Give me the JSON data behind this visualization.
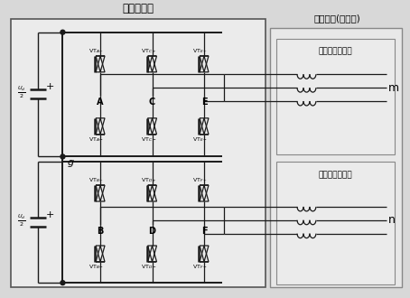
{
  "title_inverter": "六相逆变器",
  "title_motor": "六相电机(定子侧)",
  "label_winding1": "定子第一套绕组",
  "label_winding2": "定子第二套绕组",
  "label_g": "g",
  "label_m": "m",
  "label_n": "n",
  "phases1": [
    "A",
    "C",
    "E"
  ],
  "phases2": [
    "B",
    "D",
    "F"
  ],
  "vt_top1": [
    "VT$_{A+}$",
    "VT$_{C+}$",
    "VT$_{E+}$"
  ],
  "vt_bot1": [
    "VT$_{A-}$",
    "VT$_{C-}$",
    "VT$_{E-}$"
  ],
  "vt_top2": [
    "VT$_{B+}$",
    "VT$_{D+}$",
    "VT$_{F+}$"
  ],
  "vt_bot2": [
    "VT$_{B-}$",
    "VT$_{D-}$",
    "VT$_{F-}$"
  ],
  "bg_color": "#d8d8d8",
  "inverter_fill": "#e8e8e8",
  "motor_fill": "#e8e8e8",
  "winding_fill": "#e8e8e8"
}
